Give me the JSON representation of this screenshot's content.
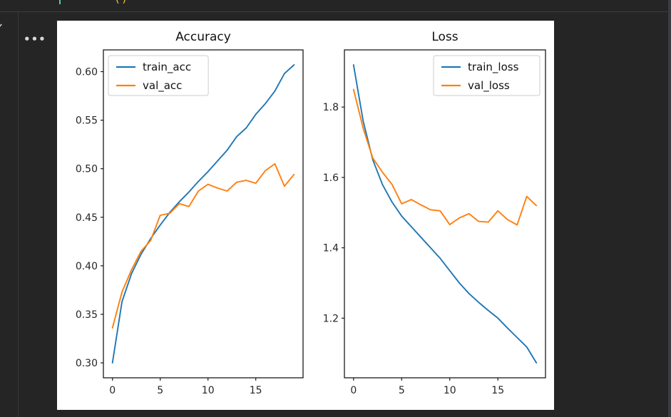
{
  "editor": {
    "gutter_check": "✓",
    "code_fragment_paren": "()",
    "more_actions": "•••"
  },
  "figure": {
    "background": "#ffffff"
  },
  "chart_data": [
    {
      "type": "line",
      "title": "Accuracy",
      "xlabel": "",
      "ylabel": "",
      "xlim": [
        -0.95,
        19.95
      ],
      "ylim": [
        0.2846,
        0.6224
      ],
      "xticks": {
        "values": [
          0,
          5,
          10,
          15
        ],
        "labels": [
          "0",
          "5",
          "10",
          "15"
        ]
      },
      "yticks": {
        "values": [
          0.3,
          0.35,
          0.4,
          0.45,
          0.5,
          0.55,
          0.6
        ],
        "labels": [
          "0.30",
          "0.35",
          "0.40",
          "0.45",
          "0.50",
          "0.55",
          "0.60"
        ]
      },
      "grid": false,
      "legend_position": "upper-left",
      "x": [
        0,
        1,
        2,
        3,
        4,
        5,
        6,
        7,
        8,
        9,
        10,
        11,
        12,
        13,
        14,
        15,
        16,
        17,
        18,
        19
      ],
      "series": [
        {
          "name": "train_acc",
          "color": "#1f77b4",
          "values": [
            0.3,
            0.363,
            0.392,
            0.412,
            0.428,
            0.442,
            0.455,
            0.466,
            0.476,
            0.487,
            0.497,
            0.508,
            0.519,
            0.533,
            0.542,
            0.556,
            0.567,
            0.58,
            0.598,
            0.607
          ]
        },
        {
          "name": "val_acc",
          "color": "#ff7f0e",
          "values": [
            0.336,
            0.373,
            0.396,
            0.415,
            0.426,
            0.452,
            0.454,
            0.464,
            0.461,
            0.477,
            0.484,
            0.48,
            0.477,
            0.486,
            0.488,
            0.485,
            0.498,
            0.505,
            0.482,
            0.494
          ]
        }
      ]
    },
    {
      "type": "line",
      "title": "Loss",
      "xlabel": "",
      "ylabel": "",
      "xlim": [
        -0.95,
        19.95
      ],
      "ylim": [
        1.0305,
        1.9625
      ],
      "xticks": {
        "values": [
          0,
          5,
          10,
          15
        ],
        "labels": [
          "0",
          "5",
          "10",
          "15"
        ]
      },
      "yticks": {
        "values": [
          1.2,
          1.4,
          1.6,
          1.8
        ],
        "labels": [
          "1.2",
          "1.4",
          "1.6",
          "1.8"
        ]
      },
      "grid": false,
      "legend_position": "upper-right",
      "x": [
        0,
        1,
        2,
        3,
        4,
        5,
        6,
        7,
        8,
        9,
        10,
        11,
        12,
        13,
        14,
        15,
        16,
        17,
        18,
        19
      ],
      "series": [
        {
          "name": "train_loss",
          "color": "#1f77b4",
          "values": [
            1.92,
            1.76,
            1.65,
            1.58,
            1.53,
            1.49,
            1.46,
            1.43,
            1.4,
            1.37,
            1.335,
            1.3,
            1.27,
            1.245,
            1.222,
            1.2,
            1.172,
            1.145,
            1.118,
            1.073
          ]
        },
        {
          "name": "val_loss",
          "color": "#ff7f0e",
          "values": [
            1.85,
            1.74,
            1.655,
            1.615,
            1.58,
            1.525,
            1.537,
            1.522,
            1.508,
            1.505,
            1.466,
            1.485,
            1.497,
            1.475,
            1.473,
            1.505,
            1.48,
            1.465,
            1.546,
            1.52
          ]
        }
      ]
    }
  ]
}
